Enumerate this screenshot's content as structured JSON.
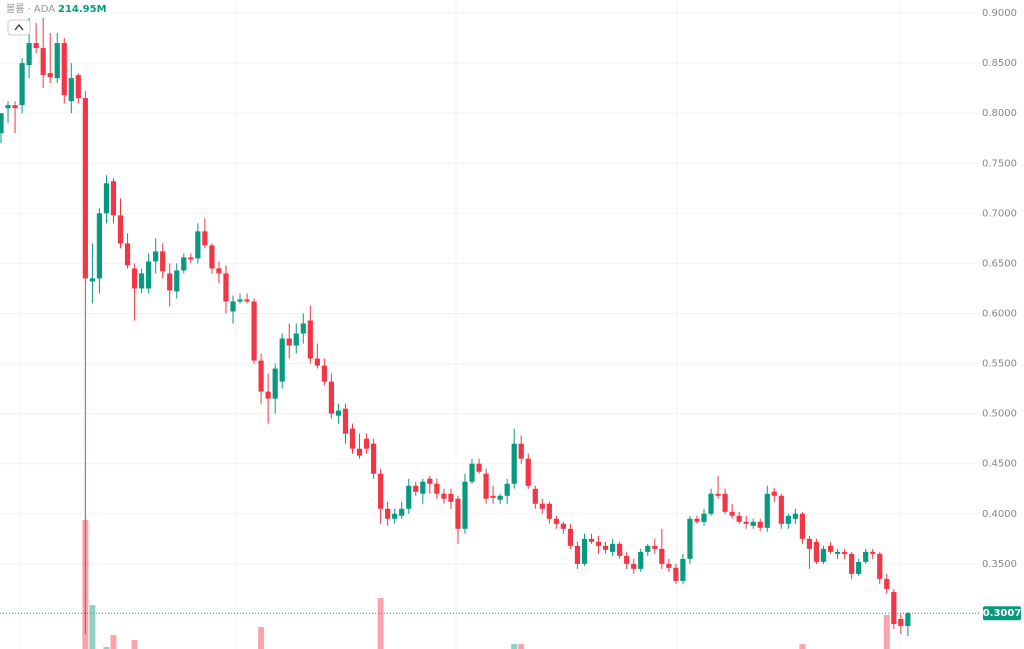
{
  "chart_data": {
    "type": "candlestick",
    "legend_name": "볼륨 · ADA",
    "volume_label": {
      "value": 214.95,
      "label": "214.95M"
    },
    "last_price": 0.3007,
    "up_color": "#089981",
    "down_color": "#f23645",
    "ylim": [
      0.265,
      0.913
    ],
    "yticks": [
      {
        "value": 0.9,
        "label": "0.9000"
      },
      {
        "value": 0.85,
        "label": "0.8500"
      },
      {
        "value": 0.8,
        "label": "0.8000"
      },
      {
        "value": 0.75,
        "label": "0.7500"
      },
      {
        "value": 0.7,
        "label": "0.7000"
      },
      {
        "value": 0.65,
        "label": "0.6500"
      },
      {
        "value": 0.6,
        "label": "0.6000"
      },
      {
        "value": 0.55,
        "label": "0.5500"
      },
      {
        "value": 0.5,
        "label": "0.5000"
      },
      {
        "value": 0.45,
        "label": "0.4500"
      },
      {
        "value": 0.4,
        "label": "0.4000"
      },
      {
        "value": 0.35,
        "label": "0.3500"
      }
    ],
    "grid": true,
    "ohlc": [
      [
        0.78,
        0.8,
        0.77,
        0.8
      ],
      [
        0.805,
        0.812,
        0.79,
        0.808
      ],
      [
        0.808,
        0.812,
        0.78,
        0.805
      ],
      [
        0.808,
        0.855,
        0.8,
        0.85
      ],
      [
        0.848,
        0.895,
        0.835,
        0.87
      ],
      [
        0.87,
        0.89,
        0.86,
        0.865
      ],
      [
        0.865,
        0.895,
        0.825,
        0.838
      ],
      [
        0.84,
        0.88,
        0.83,
        0.836
      ],
      [
        0.835,
        0.88,
        0.83,
        0.87
      ],
      [
        0.87,
        0.875,
        0.81,
        0.818
      ],
      [
        0.812,
        0.85,
        0.8,
        0.835
      ],
      [
        0.838,
        0.84,
        0.81,
        0.815
      ],
      [
        0.815,
        0.822,
        0.28,
        0.635
      ],
      [
        0.632,
        0.67,
        0.61,
        0.635
      ],
      [
        0.635,
        0.705,
        0.62,
        0.7
      ],
      [
        0.7,
        0.738,
        0.69,
        0.73
      ],
      [
        0.732,
        0.735,
        0.69,
        0.698
      ],
      [
        0.698,
        0.715,
        0.665,
        0.67
      ],
      [
        0.67,
        0.68,
        0.645,
        0.648
      ],
      [
        0.645,
        0.65,
        0.593,
        0.625
      ],
      [
        0.625,
        0.645,
        0.62,
        0.64
      ],
      [
        0.625,
        0.66,
        0.62,
        0.652
      ],
      [
        0.652,
        0.675,
        0.64,
        0.662
      ],
      [
        0.662,
        0.67,
        0.635,
        0.642
      ],
      [
        0.64,
        0.65,
        0.607,
        0.623
      ],
      [
        0.622,
        0.65,
        0.615,
        0.643
      ],
      [
        0.643,
        0.66,
        0.64,
        0.656
      ],
      [
        0.656,
        0.66,
        0.65,
        0.654
      ],
      [
        0.655,
        0.69,
        0.65,
        0.682
      ],
      [
        0.682,
        0.695,
        0.665,
        0.668
      ],
      [
        0.668,
        0.67,
        0.64,
        0.645
      ],
      [
        0.645,
        0.652,
        0.63,
        0.64
      ],
      [
        0.64,
        0.648,
        0.6,
        0.612
      ],
      [
        0.602,
        0.618,
        0.59,
        0.612
      ],
      [
        0.612,
        0.62,
        0.61,
        0.614
      ],
      [
        0.614,
        0.62,
        0.61,
        0.612
      ],
      [
        0.612,
        0.615,
        0.55,
        0.553
      ],
      [
        0.553,
        0.56,
        0.51,
        0.522
      ],
      [
        0.522,
        0.54,
        0.49,
        0.515
      ],
      [
        0.515,
        0.55,
        0.5,
        0.545
      ],
      [
        0.532,
        0.58,
        0.525,
        0.575
      ],
      [
        0.575,
        0.59,
        0.555,
        0.568
      ],
      [
        0.568,
        0.59,
        0.56,
        0.58
      ],
      [
        0.58,
        0.6,
        0.57,
        0.59
      ],
      [
        0.593,
        0.608,
        0.55,
        0.555
      ],
      [
        0.555,
        0.57,
        0.545,
        0.548
      ],
      [
        0.548,
        0.555,
        0.528,
        0.532
      ],
      [
        0.532,
        0.54,
        0.495,
        0.5
      ],
      [
        0.498,
        0.51,
        0.49,
        0.503
      ],
      [
        0.505,
        0.51,
        0.47,
        0.48
      ],
      [
        0.485,
        0.49,
        0.46,
        0.465
      ],
      [
        0.465,
        0.48,
        0.455,
        0.458
      ],
      [
        0.475,
        0.48,
        0.46,
        0.465
      ],
      [
        0.47,
        0.475,
        0.435,
        0.44
      ],
      [
        0.44,
        0.445,
        0.39,
        0.405
      ],
      [
        0.405,
        0.412,
        0.388,
        0.395
      ],
      [
        0.395,
        0.405,
        0.39,
        0.4
      ],
      [
        0.398,
        0.412,
        0.395,
        0.405
      ],
      [
        0.405,
        0.435,
        0.4,
        0.428
      ],
      [
        0.428,
        0.432,
        0.418,
        0.422
      ],
      [
        0.42,
        0.435,
        0.41,
        0.432
      ],
      [
        0.435,
        0.438,
        0.42,
        0.43
      ],
      [
        0.43,
        0.435,
        0.415,
        0.42
      ],
      [
        0.42,
        0.425,
        0.41,
        0.415
      ],
      [
        0.42,
        0.425,
        0.405,
        0.412
      ],
      [
        0.415,
        0.418,
        0.37,
        0.385
      ],
      [
        0.385,
        0.44,
        0.38,
        0.432
      ],
      [
        0.432,
        0.455,
        0.43,
        0.45
      ],
      [
        0.45,
        0.455,
        0.44,
        0.442
      ],
      [
        0.44,
        0.445,
        0.41,
        0.415
      ],
      [
        0.418,
        0.428,
        0.41,
        0.416
      ],
      [
        0.414,
        0.42,
        0.41,
        0.418
      ],
      [
        0.418,
        0.435,
        0.41,
        0.43
      ],
      [
        0.43,
        0.485,
        0.425,
        0.47
      ],
      [
        0.47,
        0.478,
        0.45,
        0.455
      ],
      [
        0.455,
        0.46,
        0.425,
        0.428
      ],
      [
        0.425,
        0.428,
        0.405,
        0.41
      ],
      [
        0.41,
        0.415,
        0.4,
        0.405
      ],
      [
        0.41,
        0.412,
        0.39,
        0.395
      ],
      [
        0.395,
        0.398,
        0.385,
        0.39
      ],
      [
        0.39,
        0.392,
        0.38,
        0.385
      ],
      [
        0.385,
        0.39,
        0.365,
        0.368
      ],
      [
        0.368,
        0.372,
        0.345,
        0.35
      ],
      [
        0.35,
        0.38,
        0.348,
        0.375
      ],
      [
        0.375,
        0.38,
        0.37,
        0.372
      ],
      [
        0.372,
        0.378,
        0.36,
        0.368
      ],
      [
        0.368,
        0.372,
        0.36,
        0.364
      ],
      [
        0.362,
        0.375,
        0.358,
        0.37
      ],
      [
        0.37,
        0.372,
        0.355,
        0.358
      ],
      [
        0.358,
        0.362,
        0.345,
        0.35
      ],
      [
        0.35,
        0.355,
        0.34,
        0.345
      ],
      [
        0.345,
        0.365,
        0.342,
        0.362
      ],
      [
        0.362,
        0.37,
        0.358,
        0.368
      ],
      [
        0.368,
        0.375,
        0.36,
        0.365
      ],
      [
        0.365,
        0.385,
        0.345,
        0.35
      ],
      [
        0.35,
        0.355,
        0.342,
        0.346
      ],
      [
        0.346,
        0.35,
        0.33,
        0.333
      ],
      [
        0.333,
        0.36,
        0.33,
        0.355
      ],
      [
        0.355,
        0.398,
        0.35,
        0.395
      ],
      [
        0.395,
        0.398,
        0.39,
        0.392
      ],
      [
        0.392,
        0.405,
        0.388,
        0.4
      ],
      [
        0.4,
        0.425,
        0.398,
        0.42
      ],
      [
        0.42,
        0.438,
        0.415,
        0.418
      ],
      [
        0.42,
        0.425,
        0.4,
        0.402
      ],
      [
        0.402,
        0.41,
        0.395,
        0.398
      ],
      [
        0.398,
        0.402,
        0.39,
        0.392
      ],
      [
        0.392,
        0.398,
        0.385,
        0.39
      ],
      [
        0.388,
        0.395,
        0.385,
        0.392
      ],
      [
        0.392,
        0.395,
        0.383,
        0.386
      ],
      [
        0.386,
        0.428,
        0.382,
        0.42
      ],
      [
        0.422,
        0.426,
        0.412,
        0.418
      ],
      [
        0.418,
        0.42,
        0.385,
        0.39
      ],
      [
        0.39,
        0.4,
        0.385,
        0.398
      ],
      [
        0.395,
        0.405,
        0.39,
        0.4
      ],
      [
        0.4,
        0.402,
        0.37,
        0.375
      ],
      [
        0.375,
        0.378,
        0.345,
        0.365
      ],
      [
        0.372,
        0.375,
        0.35,
        0.352
      ],
      [
        0.352,
        0.368,
        0.35,
        0.365
      ],
      [
        0.368,
        0.372,
        0.36,
        0.362
      ],
      [
        0.36,
        0.365,
        0.355,
        0.362
      ],
      [
        0.362,
        0.365,
        0.355,
        0.36
      ],
      [
        0.36,
        0.362,
        0.335,
        0.34
      ],
      [
        0.34,
        0.355,
        0.338,
        0.352
      ],
      [
        0.352,
        0.365,
        0.35,
        0.362
      ],
      [
        0.362,
        0.365,
        0.355,
        0.36
      ],
      [
        0.36,
        0.362,
        0.33,
        0.335
      ],
      [
        0.335,
        0.34,
        0.32,
        0.325
      ],
      [
        0.322,
        0.325,
        0.285,
        0.29
      ],
      [
        0.295,
        0.3,
        0.28,
        0.288
      ],
      [
        0.288,
        0.302,
        0.278,
        0.3007
      ]
    ],
    "volumes": [
      250,
      220,
      240,
      260,
      280,
      260,
      270,
      230,
      240,
      260,
      250,
      270,
      1600,
      750,
      300,
      330,
      450,
      290,
      280,
      400,
      240,
      230,
      250,
      260,
      270,
      240,
      230,
      220,
      260,
      250,
      240,
      230,
      280,
      260,
      220,
      210,
      300,
      530,
      310,
      280,
      270,
      250,
      240,
      260,
      300,
      260,
      250,
      290,
      240,
      280,
      260,
      250,
      230,
      270,
      820,
      300,
      240,
      230,
      250,
      220,
      230,
      220,
      230,
      220,
      240,
      300,
      280,
      260,
      240,
      260,
      220,
      210,
      240,
      360,
      360,
      280,
      250,
      230,
      240,
      220,
      220,
      250,
      280,
      270,
      220,
      220,
      210,
      220,
      230,
      240,
      230,
      240,
      230,
      230,
      260,
      240,
      260,
      270,
      280,
      230,
      240,
      260,
      250,
      250,
      230,
      220,
      220,
      210,
      270,
      240,
      260,
      230,
      220,
      260,
      360,
      250,
      230,
      220,
      210,
      220,
      250,
      240,
      230,
      220,
      270,
      280,
      650,
      300,
      214.95
    ]
  }
}
